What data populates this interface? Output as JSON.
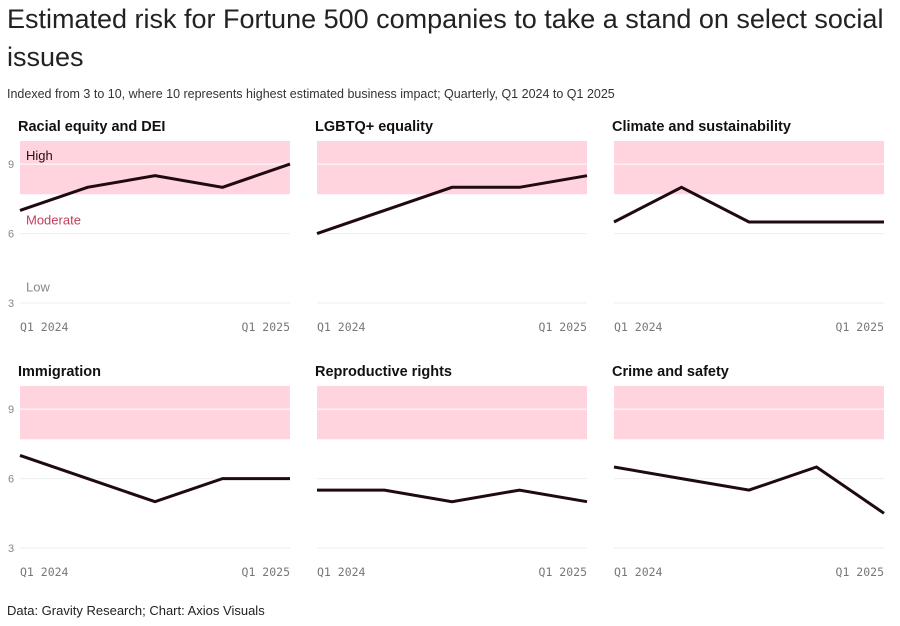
{
  "title": "Estimated risk for Fortune 500 companies to take a stand on select social issues",
  "subtitle": "Indexed from 3 to 10, where 10 represents highest estimated business impact; Quarterly, Q1 2024 to Q1 2025",
  "source": "Data: Gravity Research; Chart: Axios Visuals",
  "colors": {
    "line": "#1f0a12",
    "high_band": "#ffd4de",
    "grid": "#eeeeee",
    "band_high_label": "#2a0a14",
    "band_moderate_label": "#c0405a",
    "band_low_label": "#888888"
  },
  "band_labels": {
    "high": "High",
    "moderate": "Moderate",
    "low": "Low"
  },
  "chart_data": [
    {
      "type": "line",
      "title": "Racial equity and DEI",
      "x": [
        "Q1 2024",
        "Q2 2024",
        "Q3 2024",
        "Q4 2024",
        "Q1 2025"
      ],
      "x_tick_labels": [
        "Q1 2024",
        "Q1 2025"
      ],
      "y_ticks": [
        3,
        6,
        9
      ],
      "ylim": [
        3,
        10
      ],
      "high_band": [
        7.7,
        10
      ],
      "values": [
        7,
        8,
        8.5,
        8,
        9
      ]
    },
    {
      "type": "line",
      "title": "LGBTQ+ equality",
      "x": [
        "Q1 2024",
        "Q2 2024",
        "Q3 2024",
        "Q4 2024",
        "Q1 2025"
      ],
      "x_tick_labels": [
        "Q1 2024",
        "Q1 2025"
      ],
      "ylim": [
        3,
        10
      ],
      "high_band": [
        7.7,
        10
      ],
      "values": [
        6,
        7,
        8,
        8,
        8.5
      ]
    },
    {
      "type": "line",
      "title": "Climate and sustainability",
      "x": [
        "Q1 2024",
        "Q2 2024",
        "Q3 2024",
        "Q4 2024",
        "Q1 2025"
      ],
      "x_tick_labels": [
        "Q1 2024",
        "Q1 2025"
      ],
      "ylim": [
        3,
        10
      ],
      "high_band": [
        7.7,
        10
      ],
      "values": [
        6.5,
        8,
        6.5,
        6.5,
        6.5
      ]
    },
    {
      "type": "line",
      "title": "Immigration",
      "x": [
        "Q1 2024",
        "Q2 2024",
        "Q3 2024",
        "Q4 2024",
        "Q1 2025"
      ],
      "x_tick_labels": [
        "Q1 2024",
        "Q1 2025"
      ],
      "y_ticks": [
        3,
        6,
        9
      ],
      "ylim": [
        3,
        10
      ],
      "high_band": [
        7.7,
        10
      ],
      "values": [
        7,
        6,
        5,
        6,
        6
      ]
    },
    {
      "type": "line",
      "title": "Reproductive rights",
      "x": [
        "Q1 2024",
        "Q2 2024",
        "Q3 2024",
        "Q4 2024",
        "Q1 2025"
      ],
      "x_tick_labels": [
        "Q1 2024",
        "Q1 2025"
      ],
      "ylim": [
        3,
        10
      ],
      "high_band": [
        7.7,
        10
      ],
      "values": [
        5.5,
        5.5,
        5,
        5.5,
        5
      ]
    },
    {
      "type": "line",
      "title": "Crime and safety",
      "x": [
        "Q1 2024",
        "Q2 2024",
        "Q3 2024",
        "Q4 2024",
        "Q1 2025"
      ],
      "x_tick_labels": [
        "Q1 2024",
        "Q1 2025"
      ],
      "ylim": [
        3,
        10
      ],
      "high_band": [
        7.7,
        10
      ],
      "values": [
        6.5,
        6,
        5.5,
        6.5,
        4.5
      ]
    }
  ]
}
